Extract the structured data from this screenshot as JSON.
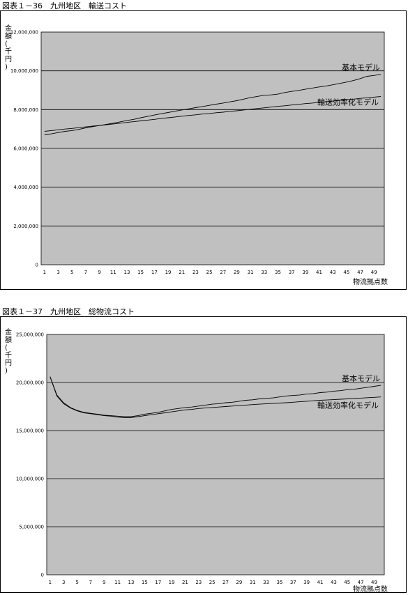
{
  "figures": [
    {
      "title": "図表１－36　九州地区　輸送コスト"
    },
    {
      "title": "図表１－37　九州地区　総物流コスト"
    }
  ],
  "chart_data": [
    {
      "type": "line",
      "title": "図表１－36　九州地区　輸送コスト",
      "ylabel": "金額(千円)",
      "xlabel": "物流拠点数",
      "ylim": [
        0,
        12000000
      ],
      "yticks": [
        0,
        2000000,
        4000000,
        6000000,
        8000000,
        10000000,
        12000000
      ],
      "ytick_labels": [
        "0",
        "2,000,000",
        "4,000,000",
        "6,000,000",
        "8,000,000",
        "10,000,000",
        "12,000,000"
      ],
      "xticks": [
        "1",
        "3",
        "5",
        "7",
        "9",
        "11",
        "13",
        "15",
        "17",
        "19",
        "21",
        "23",
        "25",
        "27",
        "29",
        "31",
        "33",
        "35",
        "37",
        "39",
        "41",
        "43",
        "45",
        "47",
        "49"
      ],
      "x": [
        1,
        2,
        3,
        4,
        5,
        6,
        7,
        8,
        9,
        10,
        11,
        12,
        13,
        14,
        15,
        16,
        17,
        18,
        19,
        20,
        21,
        22,
        23,
        24,
        25,
        26,
        27,
        28,
        29,
        30,
        31,
        32,
        33,
        34,
        35,
        36,
        37,
        38,
        39,
        40,
        41,
        42,
        43,
        44,
        45,
        46,
        47,
        48,
        49,
        50
      ],
      "grid": true,
      "background": "#c0c0c0",
      "series": [
        {
          "name": "基本モデル",
          "values": [
            6700000,
            6750000,
            6820000,
            6880000,
            6920000,
            6980000,
            7060000,
            7120000,
            7180000,
            7240000,
            7300000,
            7370000,
            7440000,
            7500000,
            7580000,
            7650000,
            7720000,
            7790000,
            7850000,
            7920000,
            7980000,
            8040000,
            8100000,
            8160000,
            8220000,
            8280000,
            8340000,
            8400000,
            8460000,
            8540000,
            8620000,
            8680000,
            8740000,
            8760000,
            8800000,
            8880000,
            8940000,
            8990000,
            9050000,
            9110000,
            9170000,
            9220000,
            9280000,
            9350000,
            9420000,
            9500000,
            9600000,
            9720000,
            9760000,
            9820000
          ]
        },
        {
          "name": "輸送効率化モデル",
          "values": [
            6880000,
            6920000,
            6960000,
            7000000,
            7030000,
            7070000,
            7110000,
            7150000,
            7180000,
            7220000,
            7260000,
            7300000,
            7340000,
            7380000,
            7420000,
            7460000,
            7500000,
            7540000,
            7580000,
            7620000,
            7660000,
            7700000,
            7730000,
            7770000,
            7800000,
            7840000,
            7870000,
            7910000,
            7940000,
            7980000,
            8020000,
            8060000,
            8090000,
            8130000,
            8170000,
            8200000,
            8240000,
            8270000,
            8310000,
            8340000,
            8380000,
            8410000,
            8440000,
            8480000,
            8510000,
            8540000,
            8580000,
            8610000,
            8640000,
            8680000
          ]
        }
      ]
    },
    {
      "type": "line",
      "title": "図表１－37　九州地区　総物流コスト",
      "ylabel": "金額(千円)",
      "xlabel": "物流拠点数",
      "ylim": [
        0,
        25000000
      ],
      "yticks": [
        0,
        5000000,
        10000000,
        15000000,
        20000000,
        25000000
      ],
      "ytick_labels": [
        "0",
        "5,000,000",
        "10,000,000",
        "15,000,000",
        "20,000,000",
        "25,000,000"
      ],
      "xticks": [
        "1",
        "3",
        "5",
        "7",
        "9",
        "11",
        "13",
        "15",
        "17",
        "19",
        "21",
        "23",
        "25",
        "27",
        "29",
        "31",
        "33",
        "35",
        "37",
        "39",
        "41",
        "43",
        "45",
        "47",
        "49"
      ],
      "x": [
        1,
        2,
        3,
        4,
        5,
        6,
        7,
        8,
        9,
        10,
        11,
        12,
        13,
        14,
        15,
        16,
        17,
        18,
        19,
        20,
        21,
        22,
        23,
        24,
        25,
        26,
        27,
        28,
        29,
        30,
        31,
        32,
        33,
        34,
        35,
        36,
        37,
        38,
        39,
        40,
        41,
        42,
        43,
        44,
        45,
        46,
        47,
        48,
        49,
        50
      ],
      "grid": true,
      "background": "#c0c0c0",
      "series": [
        {
          "name": "基本モデル",
          "values": [
            20600000,
            18700000,
            17900000,
            17400000,
            17100000,
            16900000,
            16800000,
            16700000,
            16600000,
            16550000,
            16500000,
            16450000,
            16450000,
            16550000,
            16700000,
            16800000,
            16900000,
            17050000,
            17200000,
            17300000,
            17400000,
            17450000,
            17550000,
            17650000,
            17750000,
            17800000,
            17900000,
            17950000,
            18050000,
            18150000,
            18200000,
            18300000,
            18350000,
            18400000,
            18500000,
            18600000,
            18650000,
            18700000,
            18800000,
            18850000,
            18950000,
            19000000,
            19100000,
            19150000,
            19250000,
            19300000,
            19400000,
            19500000,
            19600000,
            19700000
          ]
        },
        {
          "name": "輸送効率化モデル",
          "values": [
            20600000,
            18600000,
            17800000,
            17350000,
            17050000,
            16850000,
            16750000,
            16650000,
            16550000,
            16500000,
            16400000,
            16350000,
            16350000,
            16450000,
            16550000,
            16650000,
            16750000,
            16850000,
            16950000,
            17050000,
            17150000,
            17200000,
            17300000,
            17350000,
            17400000,
            17450000,
            17500000,
            17550000,
            17600000,
            17650000,
            17700000,
            17750000,
            17780000,
            17820000,
            17860000,
            17900000,
            17950000,
            18000000,
            18050000,
            18100000,
            18150000,
            18180000,
            18220000,
            18260000,
            18300000,
            18340000,
            18380000,
            18420000,
            18460000,
            18500000
          ]
        }
      ]
    }
  ]
}
